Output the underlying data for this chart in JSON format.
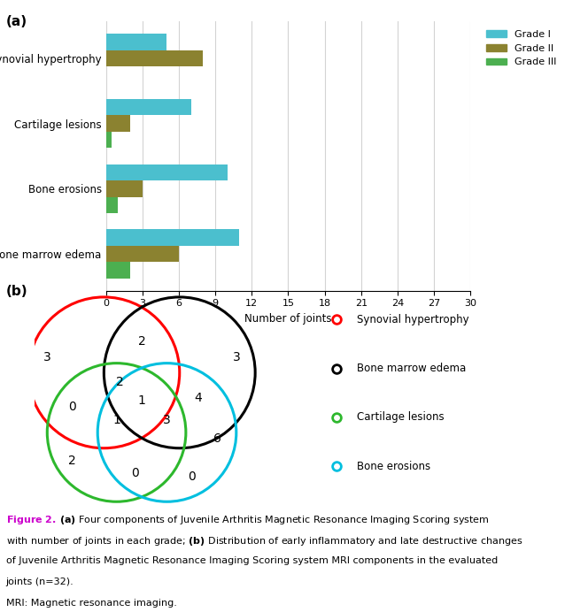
{
  "bar_categories": [
    "Bone marrow edema",
    "Bone erosions",
    "Cartilage lesions",
    "Synovial hypertrophy"
  ],
  "grade1": [
    11,
    10,
    7,
    5
  ],
  "grade2": [
    6,
    3,
    2,
    8
  ],
  "grade3": [
    2,
    1,
    0.5,
    0
  ],
  "grade1_color": "#4BBFCE",
  "grade2_color": "#8B8230",
  "grade3_color": "#4CAF50",
  "xlim": [
    0,
    30
  ],
  "xticks": [
    0,
    3,
    6,
    9,
    12,
    15,
    18,
    21,
    24,
    27,
    30
  ],
  "xlabel": "Number of joints",
  "legend_labels": [
    "Grade I",
    "Grade II",
    "Grade III"
  ],
  "panel_a_label": "(a)",
  "panel_b_label": "(b)",
  "venn_colors": {
    "red": "#FF0000",
    "black": "#000000",
    "green": "#2DB82D",
    "cyan": "#00BFDF"
  },
  "legend_venn": [
    {
      "label": "Synovial hypertrophy",
      "color": "#FF0000"
    },
    {
      "label": "Bone marrow edema",
      "color": "#000000"
    },
    {
      "label": "Cartilage lesions",
      "color": "#2DB82D"
    },
    {
      "label": "Bone erosions",
      "color": "#00BFDF"
    }
  ],
  "background_color": "#FFFFFF"
}
